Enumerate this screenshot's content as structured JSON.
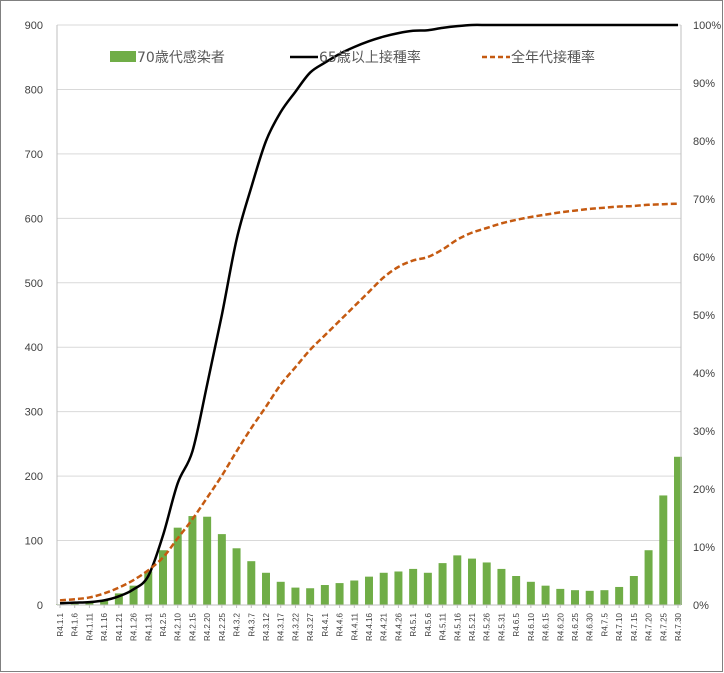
{
  "chart_data": {
    "type": "bar",
    "title": "",
    "xlabel": "",
    "ylabel": "",
    "ylim": [
      0,
      900
    ],
    "y2lim": [
      0,
      100
    ],
    "y_ticks": [
      "0",
      "100",
      "200",
      "300",
      "400",
      "500",
      "600",
      "700",
      "800",
      "900"
    ],
    "y2_ticks": [
      "0%",
      "10%",
      "20%",
      "30%",
      "40%",
      "50%",
      "60%",
      "70%",
      "80%",
      "90%",
      "100%"
    ],
    "grid": true,
    "legend_position": "top",
    "x_tick_labels": [
      "R4.1.1",
      "R4.1.6",
      "R4.1.11",
      "R4.1.16",
      "R4.1.21",
      "R4.1.26",
      "R4.1.31",
      "R4.2.5",
      "R4.2.10",
      "R4.2.15",
      "R4.2.20",
      "R4.2.25",
      "R4.3.2",
      "R4.3.7",
      "R4.3.12",
      "R4.3.17",
      "R4.3.22",
      "R4.3.27",
      "R4.4.1",
      "R4.4.6",
      "R4.4.11",
      "R4.4.16",
      "R4.4.21",
      "R4.4.26",
      "R4.5.1",
      "R4.5.6",
      "R4.5.11",
      "R4.5.16",
      "R4.5.21",
      "R4.5.26",
      "R4.5.31",
      "R4.6.5",
      "R4.6.10",
      "R4.6.15",
      "R4.6.20",
      "R4.6.25",
      "R4.6.30",
      "R4.7.5",
      "R4.7.10",
      "R4.7.15",
      "R4.7.20",
      "R4.7.25",
      "R4.7.30"
    ],
    "series": [
      {
        "name": "70歳代感染者",
        "kind": "bar",
        "axis": "left",
        "color": "#70ad47",
        "x": [
          "R4.1.1",
          "R4.1.6",
          "R4.1.11",
          "R4.1.16",
          "R4.1.21",
          "R4.1.26",
          "R4.1.31",
          "R4.2.5",
          "R4.2.10",
          "R4.2.15",
          "R4.2.20",
          "R4.2.25",
          "R4.3.2",
          "R4.3.7",
          "R4.3.12",
          "R4.3.17",
          "R4.3.22",
          "R4.3.27",
          "R4.4.1",
          "R4.4.6",
          "R4.4.11",
          "R4.4.16",
          "R4.4.21",
          "R4.4.26",
          "R4.5.1",
          "R4.5.6",
          "R4.5.11",
          "R4.5.16",
          "R4.5.21",
          "R4.5.26",
          "R4.5.31",
          "R4.6.5",
          "R4.6.10",
          "R4.6.15",
          "R4.6.20",
          "R4.6.25",
          "R4.6.30",
          "R4.7.5",
          "R4.7.10",
          "R4.7.15",
          "R4.7.20",
          "R4.7.25",
          "R4.7.30"
        ],
        "values": [
          1,
          2,
          4,
          8,
          18,
          30,
          52,
          85,
          120,
          138,
          137,
          110,
          88,
          68,
          50,
          36,
          27,
          26,
          31,
          34,
          38,
          44,
          50,
          52,
          56,
          50,
          65,
          77,
          72,
          66,
          56,
          45,
          36,
          30,
          25,
          23,
          22,
          23,
          28,
          45,
          85,
          170,
          230
        ]
      },
      {
        "name": "65歳以上接種率",
        "kind": "line",
        "axis": "right",
        "color": "#000000",
        "dash": "solid",
        "x": [
          "R4.1.1",
          "R4.1.6",
          "R4.1.11",
          "R4.1.16",
          "R4.1.21",
          "R4.1.26",
          "R4.1.31",
          "R4.2.5",
          "R4.2.10",
          "R4.2.15",
          "R4.2.20",
          "R4.2.25",
          "R4.3.2",
          "R4.3.7",
          "R4.3.12",
          "R4.3.17",
          "R4.3.22",
          "R4.3.27",
          "R4.4.1",
          "R4.4.6",
          "R4.4.11",
          "R4.4.16",
          "R4.4.21",
          "R4.4.26",
          "R4.5.1",
          "R4.5.6",
          "R4.5.11",
          "R4.5.16",
          "R4.5.21",
          "R4.5.26",
          "R4.5.31",
          "R4.6.5",
          "R4.6.10",
          "R4.6.15",
          "R4.6.20",
          "R4.6.25",
          "R4.6.30",
          "R4.7.5",
          "R4.7.10",
          "R4.7.15",
          "R4.7.20",
          "R4.7.25",
          "R4.7.30"
        ],
        "values": [
          0.3,
          0.4,
          0.5,
          0.8,
          1.5,
          2.7,
          5.0,
          12.0,
          21.0,
          26.5,
          38.0,
          50.0,
          63.0,
          72.0,
          80.0,
          85.0,
          88.5,
          91.8,
          93.5,
          95.0,
          96.2,
          97.2,
          98.0,
          98.6,
          99.0,
          99.1,
          99.5,
          99.8,
          100.0,
          100.2,
          100.3,
          100.4,
          100.5,
          100.5,
          100.6,
          100.6,
          100.7,
          100.7,
          100.8,
          100.8,
          100.9,
          100.9,
          101.0
        ]
      },
      {
        "name": "全年代接種率",
        "kind": "line",
        "axis": "right",
        "color": "#c55a11",
        "dash": "dashed",
        "x": [
          "R4.1.1",
          "R4.1.6",
          "R4.1.11",
          "R4.1.16",
          "R4.1.21",
          "R4.1.26",
          "R4.1.31",
          "R4.2.5",
          "R4.2.10",
          "R4.2.15",
          "R4.2.20",
          "R4.2.25",
          "R4.3.2",
          "R4.3.7",
          "R4.3.12",
          "R4.3.17",
          "R4.3.22",
          "R4.3.27",
          "R4.4.1",
          "R4.4.6",
          "R4.4.11",
          "R4.4.16",
          "R4.4.21",
          "R4.4.26",
          "R4.5.1",
          "R4.5.6",
          "R4.5.11",
          "R4.5.16",
          "R4.5.21",
          "R4.5.26",
          "R4.5.31",
          "R4.6.5",
          "R4.6.10",
          "R4.6.15",
          "R4.6.20",
          "R4.6.25",
          "R4.6.30",
          "R4.7.5",
          "R4.7.10",
          "R4.7.15",
          "R4.7.20",
          "R4.7.25",
          "R4.7.30"
        ],
        "values": [
          0.8,
          1.0,
          1.3,
          2.0,
          3.0,
          4.3,
          6.0,
          8.2,
          11.5,
          14.8,
          18.5,
          22.3,
          26.5,
          30.5,
          34.2,
          38.0,
          41.0,
          44.0,
          46.5,
          49.0,
          51.5,
          54.0,
          56.5,
          58.3,
          59.4,
          60.0,
          61.3,
          63.0,
          64.2,
          65.0,
          65.8,
          66.4,
          66.9,
          67.3,
          67.7,
          68.0,
          68.3,
          68.5,
          68.7,
          68.8,
          69.0,
          69.1,
          69.2
        ]
      }
    ]
  }
}
